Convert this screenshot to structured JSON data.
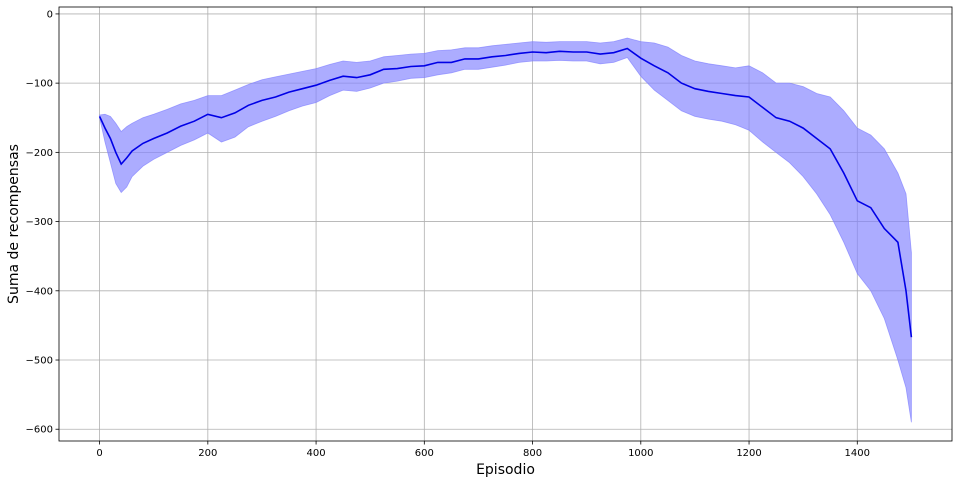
{
  "chart_data": {
    "type": "line",
    "title": "",
    "xlabel": "Episodio",
    "ylabel": "Suma de recompensas",
    "xlim": [
      -75,
      1575
    ],
    "ylim": [
      -617,
      10
    ],
    "xticks": [
      0,
      200,
      400,
      600,
      800,
      1000,
      1200,
      1400
    ],
    "yticks": [
      0,
      -100,
      -200,
      -300,
      -400,
      -500,
      -600
    ],
    "grid": true,
    "legend": "none",
    "line_color": "#0000e6",
    "band_color": "#7f7fff",
    "series": [
      {
        "x": [
          0,
          10,
          20,
          30,
          40,
          50,
          60,
          80,
          100,
          125,
          150,
          175,
          200,
          225,
          250,
          275,
          300,
          325,
          350,
          375,
          400,
          425,
          450,
          475,
          500,
          525,
          550,
          575,
          600,
          625,
          650,
          675,
          700,
          725,
          750,
          775,
          800,
          825,
          850,
          875,
          900,
          925,
          950,
          975,
          1000,
          1025,
          1050,
          1075,
          1100,
          1125,
          1150,
          1175,
          1200,
          1225,
          1250,
          1275,
          1300,
          1325,
          1350,
          1375,
          1400,
          1425,
          1450,
          1475,
          1490,
          1500
        ],
        "y": [
          -148,
          -165,
          -180,
          -200,
          -217,
          -208,
          -198,
          -187,
          -180,
          -172,
          -162,
          -155,
          -145,
          -150,
          -143,
          -132,
          -125,
          -120,
          -113,
          -108,
          -103,
          -96,
          -90,
          -92,
          -88,
          -80,
          -79,
          -76,
          -75,
          -70,
          -70,
          -65,
          -65,
          -62,
          -60,
          -57,
          -55,
          -56,
          -54,
          -55,
          -55,
          -58,
          -56,
          -50,
          -64,
          -75,
          -85,
          -100,
          -108,
          -112,
          -115,
          -118,
          -120,
          -135,
          -150,
          -155,
          -165,
          -180,
          -195,
          -230,
          -270,
          -280,
          -310,
          -330,
          -400,
          -467
        ],
        "lower": [
          -150,
          -185,
          -215,
          -245,
          -258,
          -250,
          -235,
          -220,
          -210,
          -200,
          -190,
          -182,
          -172,
          -185,
          -178,
          -163,
          -155,
          -148,
          -140,
          -133,
          -128,
          -118,
          -110,
          -112,
          -107,
          -100,
          -97,
          -93,
          -92,
          -88,
          -85,
          -80,
          -80,
          -77,
          -74,
          -70,
          -68,
          -68,
          -67,
          -68,
          -68,
          -72,
          -70,
          -63,
          -90,
          -110,
          -125,
          -140,
          -148,
          -152,
          -155,
          -160,
          -168,
          -185,
          -200,
          -215,
          -235,
          -260,
          -290,
          -330,
          -375,
          -400,
          -440,
          -500,
          -540,
          -590
        ],
        "upper": [
          -146,
          -145,
          -148,
          -158,
          -170,
          -163,
          -158,
          -150,
          -145,
          -138,
          -130,
          -125,
          -118,
          -118,
          -110,
          -102,
          -95,
          -91,
          -87,
          -83,
          -79,
          -73,
          -68,
          -70,
          -68,
          -62,
          -60,
          -58,
          -57,
          -53,
          -52,
          -49,
          -49,
          -46,
          -44,
          -42,
          -40,
          -41,
          -40,
          -40,
          -40,
          -42,
          -40,
          -35,
          -40,
          -42,
          -48,
          -60,
          -68,
          -72,
          -75,
          -78,
          -75,
          -85,
          -100,
          -100,
          -105,
          -115,
          -120,
          -140,
          -165,
          -175,
          -195,
          -230,
          -260,
          -345
        ]
      }
    ]
  }
}
